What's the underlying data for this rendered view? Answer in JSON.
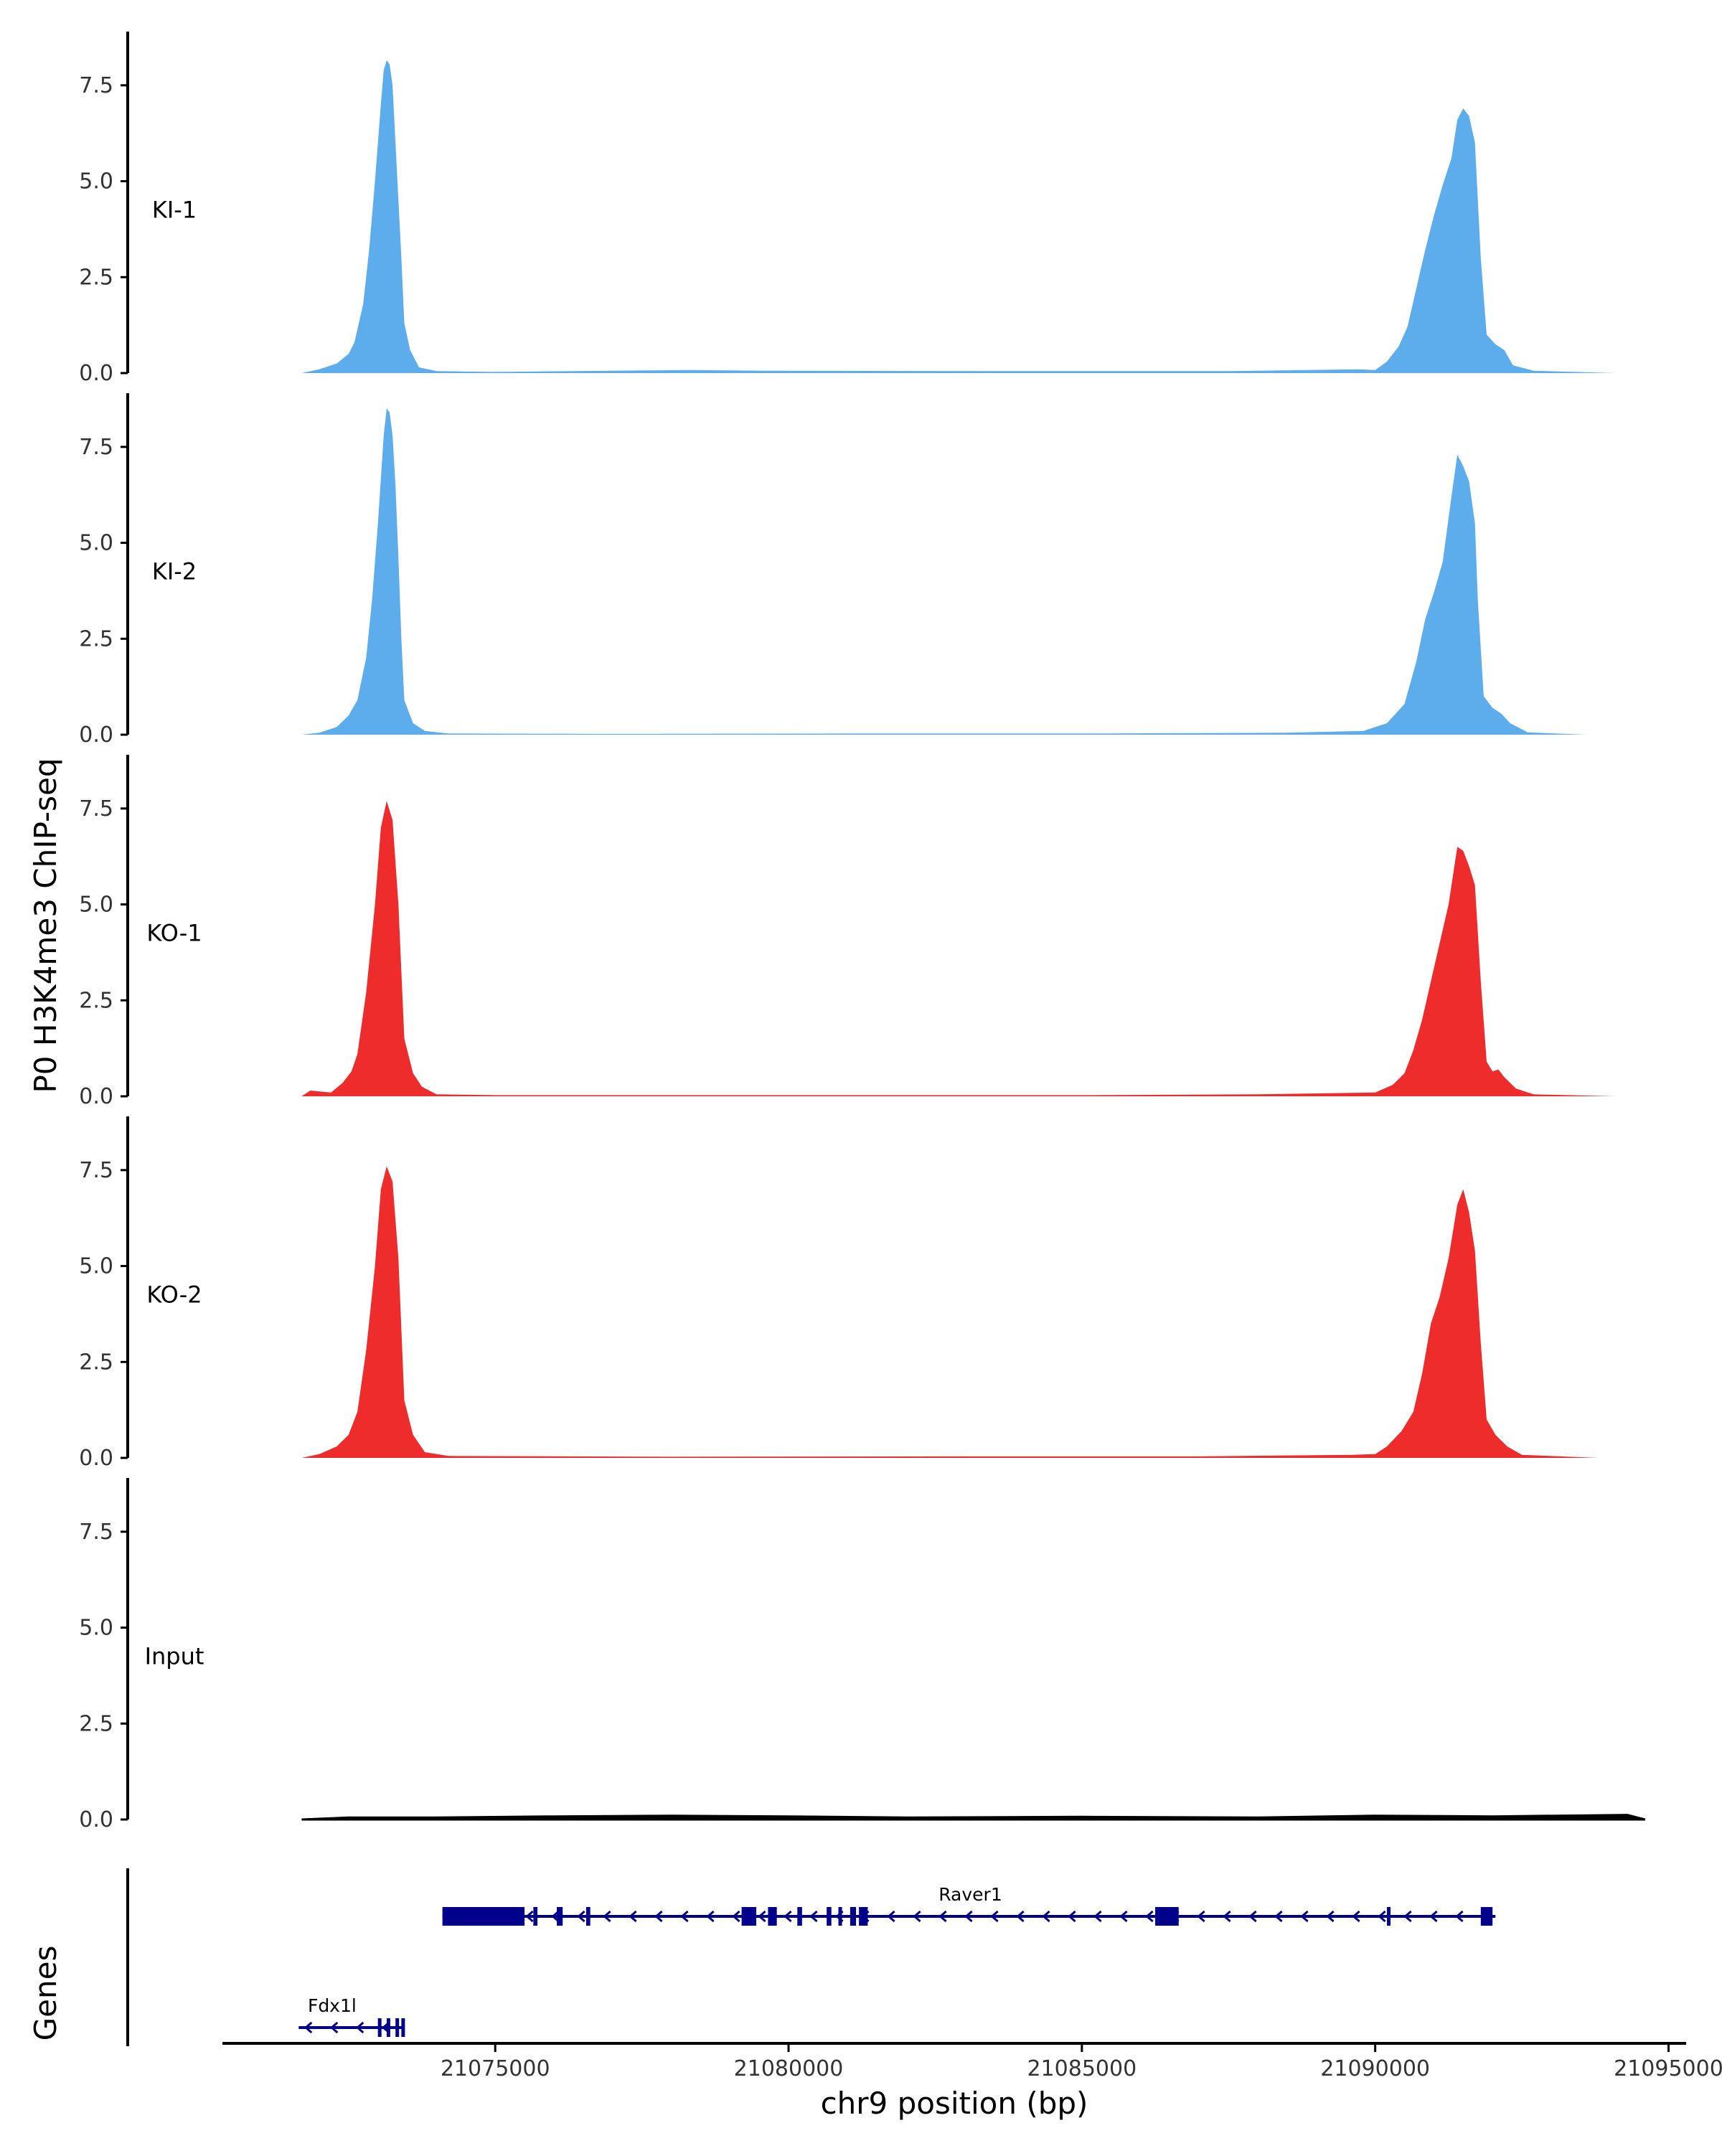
{
  "chart_data": {
    "type": "area",
    "ylabel": "P0 H3K4me3 ChIP-seq",
    "xlabel": "chr9 position (bp)",
    "xlim": [
      21070350,
      21095300
    ],
    "ylim": [
      0,
      8.9
    ],
    "y_ticks": [
      0,
      2.5,
      5,
      7.5
    ],
    "y_tick_labels": [
      "0.0",
      "2.5",
      "5.0",
      "7.5"
    ],
    "x_ticks": [
      21075000,
      21080000,
      21085000,
      21090000,
      21095000
    ],
    "x_tick_labels": [
      "21075000",
      "21080000",
      "21085000",
      "21090000",
      "21095000"
    ],
    "grid": false,
    "tracks": [
      {
        "name": "KI-1",
        "color": "#5DADEC",
        "start": 21071700,
        "end": 21094100,
        "points": [
          [
            21071700,
            0.0
          ],
          [
            21072000,
            0.1
          ],
          [
            21072300,
            0.25
          ],
          [
            21072500,
            0.5
          ],
          [
            21072600,
            0.8
          ],
          [
            21072750,
            1.8
          ],
          [
            21072850,
            3.2
          ],
          [
            21072950,
            5.0
          ],
          [
            21073050,
            7.0
          ],
          [
            21073100,
            7.9
          ],
          [
            21073150,
            8.15
          ],
          [
            21073200,
            8.05
          ],
          [
            21073250,
            7.5
          ],
          [
            21073300,
            6.0
          ],
          [
            21073350,
            4.5
          ],
          [
            21073400,
            3.0
          ],
          [
            21073450,
            1.3
          ],
          [
            21073550,
            0.6
          ],
          [
            21073700,
            0.15
          ],
          [
            21074000,
            0.05
          ],
          [
            21075000,
            0.03
          ],
          [
            21078300,
            0.08
          ],
          [
            21079600,
            0.06
          ],
          [
            21083500,
            0.05
          ],
          [
            21087500,
            0.05
          ],
          [
            21089700,
            0.1
          ],
          [
            21090000,
            0.08
          ],
          [
            21090200,
            0.3
          ],
          [
            21090400,
            0.7
          ],
          [
            21090550,
            1.2
          ],
          [
            21090700,
            2.2
          ],
          [
            21090850,
            3.2
          ],
          [
            21091000,
            4.1
          ],
          [
            21091150,
            4.9
          ],
          [
            21091300,
            5.6
          ],
          [
            21091400,
            6.6
          ],
          [
            21091500,
            6.9
          ],
          [
            21091600,
            6.7
          ],
          [
            21091700,
            6.0
          ],
          [
            21091750,
            4.5
          ],
          [
            21091800,
            3.0
          ],
          [
            21091900,
            1.0
          ],
          [
            21092050,
            0.75
          ],
          [
            21092200,
            0.6
          ],
          [
            21092350,
            0.2
          ],
          [
            21092700,
            0.06
          ],
          [
            21094100,
            0.0
          ]
        ]
      },
      {
        "name": "KI-2",
        "color": "#5DADEC",
        "start": 21071700,
        "end": 21093600,
        "points": [
          [
            21071700,
            0.0
          ],
          [
            21072000,
            0.05
          ],
          [
            21072300,
            0.2
          ],
          [
            21072500,
            0.5
          ],
          [
            21072650,
            0.9
          ],
          [
            21072800,
            2.0
          ],
          [
            21072900,
            3.5
          ],
          [
            21073000,
            5.5
          ],
          [
            21073100,
            7.8
          ],
          [
            21073150,
            8.5
          ],
          [
            21073200,
            8.4
          ],
          [
            21073250,
            7.8
          ],
          [
            21073300,
            6.5
          ],
          [
            21073350,
            4.6
          ],
          [
            21073400,
            2.5
          ],
          [
            21073450,
            0.9
          ],
          [
            21073600,
            0.3
          ],
          [
            21073800,
            0.1
          ],
          [
            21074200,
            0.03
          ],
          [
            21077000,
            0.02
          ],
          [
            21081000,
            0.03
          ],
          [
            21085000,
            0.03
          ],
          [
            21088500,
            0.05
          ],
          [
            21089800,
            0.1
          ],
          [
            21090200,
            0.3
          ],
          [
            21090500,
            0.8
          ],
          [
            21090700,
            1.9
          ],
          [
            21090850,
            3.0
          ],
          [
            21091000,
            3.7
          ],
          [
            21091150,
            4.5
          ],
          [
            21091300,
            6.2
          ],
          [
            21091400,
            7.3
          ],
          [
            21091500,
            7.0
          ],
          [
            21091600,
            6.6
          ],
          [
            21091700,
            5.5
          ],
          [
            21091750,
            3.5
          ],
          [
            21091850,
            1.0
          ],
          [
            21092000,
            0.7
          ],
          [
            21092150,
            0.55
          ],
          [
            21092300,
            0.3
          ],
          [
            21092600,
            0.06
          ],
          [
            21093600,
            0.0
          ]
        ]
      },
      {
        "name": "KO-1",
        "color": "#EE2C2C",
        "start": 21071700,
        "end": 21094100,
        "points": [
          [
            21071700,
            0.0
          ],
          [
            21071850,
            0.15
          ],
          [
            21072050,
            0.12
          ],
          [
            21072200,
            0.1
          ],
          [
            21072400,
            0.35
          ],
          [
            21072550,
            0.65
          ],
          [
            21072650,
            1.1
          ],
          [
            21072800,
            2.7
          ],
          [
            21072950,
            5.0
          ],
          [
            21073050,
            7.0
          ],
          [
            21073150,
            7.7
          ],
          [
            21073250,
            7.2
          ],
          [
            21073350,
            5.0
          ],
          [
            21073450,
            1.5
          ],
          [
            21073600,
            0.6
          ],
          [
            21073750,
            0.25
          ],
          [
            21074000,
            0.05
          ],
          [
            21075000,
            0.03
          ],
          [
            21080000,
            0.03
          ],
          [
            21085000,
            0.03
          ],
          [
            21088000,
            0.05
          ],
          [
            21090000,
            0.1
          ],
          [
            21090300,
            0.3
          ],
          [
            21090500,
            0.6
          ],
          [
            21090650,
            1.2
          ],
          [
            21090800,
            2.0
          ],
          [
            21090950,
            3.0
          ],
          [
            21091100,
            4.0
          ],
          [
            21091250,
            5.0
          ],
          [
            21091400,
            6.5
          ],
          [
            21091500,
            6.4
          ],
          [
            21091600,
            6.0
          ],
          [
            21091700,
            5.5
          ],
          [
            21091800,
            3.0
          ],
          [
            21091900,
            0.9
          ],
          [
            21092000,
            0.65
          ],
          [
            21092100,
            0.7
          ],
          [
            21092200,
            0.5
          ],
          [
            21092400,
            0.2
          ],
          [
            21092700,
            0.05
          ],
          [
            21094100,
            0.0
          ]
        ]
      },
      {
        "name": "KO-2",
        "color": "#EE2C2C",
        "start": 21071700,
        "end": 21093800,
        "points": [
          [
            21071700,
            0.0
          ],
          [
            21072000,
            0.1
          ],
          [
            21072300,
            0.3
          ],
          [
            21072500,
            0.6
          ],
          [
            21072650,
            1.2
          ],
          [
            21072800,
            2.8
          ],
          [
            21072950,
            5.0
          ],
          [
            21073050,
            7.0
          ],
          [
            21073150,
            7.6
          ],
          [
            21073250,
            7.2
          ],
          [
            21073350,
            5.2
          ],
          [
            21073450,
            1.5
          ],
          [
            21073600,
            0.6
          ],
          [
            21073800,
            0.15
          ],
          [
            21074200,
            0.05
          ],
          [
            21078000,
            0.03
          ],
          [
            21083000,
            0.04
          ],
          [
            21087000,
            0.04
          ],
          [
            21089600,
            0.08
          ],
          [
            21090000,
            0.1
          ],
          [
            21090200,
            0.3
          ],
          [
            21090450,
            0.7
          ],
          [
            21090650,
            1.2
          ],
          [
            21090800,
            2.2
          ],
          [
            21090950,
            3.5
          ],
          [
            21091100,
            4.2
          ],
          [
            21091250,
            5.2
          ],
          [
            21091400,
            6.6
          ],
          [
            21091500,
            7.0
          ],
          [
            21091600,
            6.4
          ],
          [
            21091700,
            5.4
          ],
          [
            21091800,
            3.0
          ],
          [
            21091900,
            1.0
          ],
          [
            21092050,
            0.6
          ],
          [
            21092250,
            0.3
          ],
          [
            21092500,
            0.08
          ],
          [
            21093800,
            0.0
          ]
        ]
      },
      {
        "name": "Input",
        "color": "#000000",
        "start": 21071700,
        "end": 21094600,
        "points": [
          [
            21071700,
            0.0
          ],
          [
            21072500,
            0.05
          ],
          [
            21074000,
            0.05
          ],
          [
            21076000,
            0.08
          ],
          [
            21078000,
            0.1
          ],
          [
            21080000,
            0.08
          ],
          [
            21082000,
            0.05
          ],
          [
            21085000,
            0.07
          ],
          [
            21088000,
            0.05
          ],
          [
            21090000,
            0.1
          ],
          [
            21092000,
            0.08
          ],
          [
            21094300,
            0.12
          ],
          [
            21094600,
            0.0
          ]
        ]
      }
    ],
    "genes_track_label": "Genes",
    "genes": [
      {
        "name": "Raver1",
        "strand": "-",
        "start": 21074100,
        "end": 21092050,
        "color": "#00008B",
        "exons": [
          [
            21074100,
            21075500
          ],
          [
            21075650,
            21075720
          ],
          [
            21076050,
            21076150
          ],
          [
            21076550,
            21076620
          ],
          [
            21079200,
            21079450
          ],
          [
            21079650,
            21079800
          ],
          [
            21080150,
            21080230
          ],
          [
            21080650,
            21080730
          ],
          [
            21080850,
            21080900
          ],
          [
            21081050,
            21081150
          ],
          [
            21081200,
            21081350
          ],
          [
            21086250,
            21086650
          ],
          [
            21090200,
            21090250
          ],
          [
            21091800,
            21092000
          ]
        ]
      },
      {
        "name": "Fdx1l",
        "strand": "-",
        "start": 21071650,
        "end": 21073450,
        "color": "#00008B",
        "exons": [
          [
            21073000,
            21073060
          ],
          [
            21073150,
            21073200
          ],
          [
            21073300,
            21073350
          ],
          [
            21073400,
            21073450
          ]
        ]
      }
    ]
  }
}
